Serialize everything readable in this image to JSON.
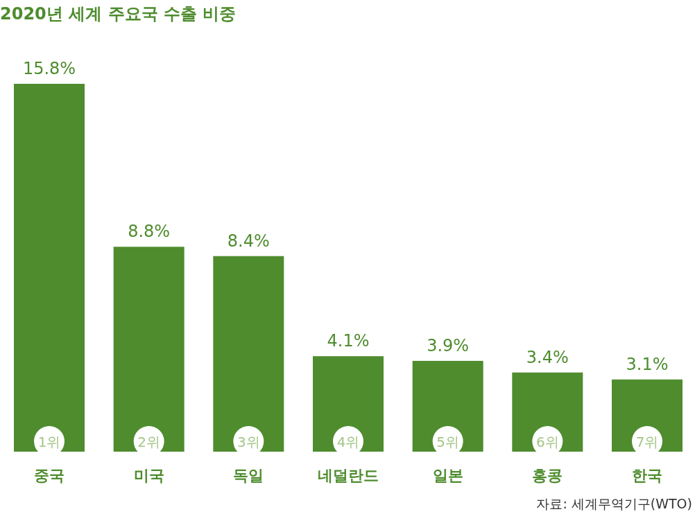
{
  "chart_data": {
    "type": "bar",
    "title": "2020년 세계 주요국 수출 비중",
    "categories": [
      "중국",
      "미국",
      "독일",
      "네덜란드",
      "일본",
      "홍콩",
      "한국"
    ],
    "values": [
      15.8,
      8.8,
      8.4,
      4.1,
      3.9,
      3.4,
      3.1
    ],
    "value_labels": [
      "15.8%",
      "8.8%",
      "8.4%",
      "4.1%",
      "3.9%",
      "3.4%",
      "3.1%"
    ],
    "color": "#4e8c2e",
    "annotations": [
      {
        "text": "1위",
        "x": "중국",
        "y": 0
      },
      {
        "text": "2위",
        "x": "미국",
        "y": 0
      },
      {
        "text": "3위",
        "x": "독일",
        "y": 0
      },
      {
        "text": "4위",
        "x": "네덜란드",
        "y": 0
      },
      {
        "text": "5위",
        "x": "일본",
        "y": 0
      },
      {
        "text": "6위",
        "x": "홍콩",
        "y": 0
      },
      {
        "text": "7위",
        "x": "한국",
        "y": 0
      },
      "자료: 세계무역기구(WTO)"
    ],
    "grid": false
  }
}
